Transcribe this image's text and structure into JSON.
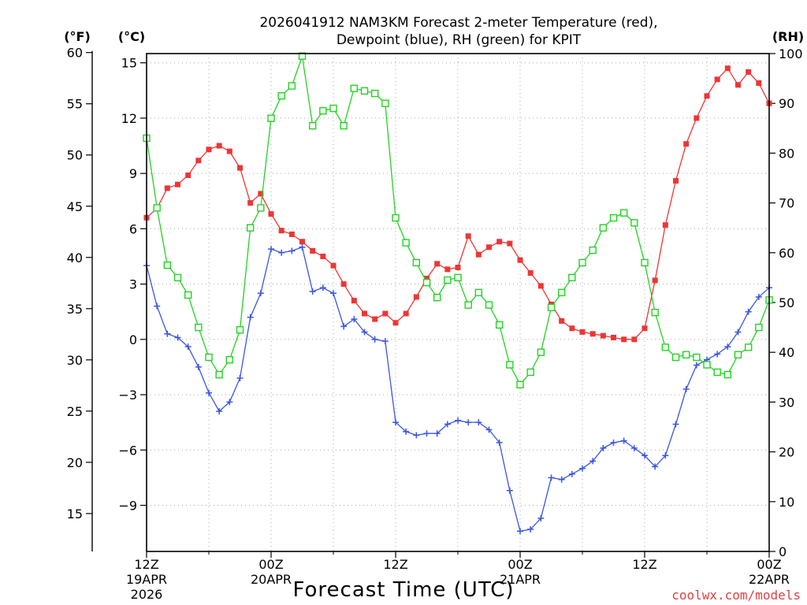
{
  "chart_data": {
    "type": "line",
    "title_line1": "2026041912 NAM3KM Forecast 2-meter Temperature (red),",
    "title_line2": "Dewpoint (blue), RH (green) for KPIT",
    "xlabel": "Forecast Time (UTC)",
    "credit": "coolwx.com/models",
    "units": {
      "fahrenheit": "(°F)",
      "celsius": "(°C)",
      "rh": "(RH)"
    },
    "x_hours": [
      0,
      1,
      2,
      3,
      4,
      5,
      6,
      7,
      8,
      9,
      10,
      11,
      12,
      13,
      14,
      15,
      16,
      17,
      18,
      19,
      20,
      21,
      22,
      23,
      24,
      25,
      26,
      27,
      28,
      29,
      30,
      31,
      32,
      33,
      34,
      35,
      36,
      37,
      38,
      39,
      40,
      41,
      42,
      43,
      44,
      45,
      46,
      47,
      48,
      49,
      50,
      51,
      52,
      53,
      54,
      55,
      56,
      57,
      58,
      59,
      60
    ],
    "xlim_hours": [
      0,
      60
    ],
    "x_ticks": [
      {
        "hour": 0,
        "lines": [
          "12Z",
          "19APR",
          "2026"
        ]
      },
      {
        "hour": 12,
        "lines": [
          "00Z",
          "20APR"
        ]
      },
      {
        "hour": 24,
        "lines": [
          "12Z"
        ]
      },
      {
        "hour": 36,
        "lines": [
          "00Z",
          "21APR"
        ]
      },
      {
        "hour": 48,
        "lines": [
          "12Z"
        ]
      },
      {
        "hour": 60,
        "lines": [
          "00Z",
          "22APR"
        ]
      }
    ],
    "celsius_axis": {
      "min": -11.5,
      "max": 15.5,
      "ticks": [
        "15",
        "12",
        "9",
        "6",
        "3",
        "0",
        "−3",
        "−6",
        "−9"
      ],
      "tick_values": [
        15,
        12,
        9,
        6,
        3,
        0,
        -3,
        -6,
        -9
      ]
    },
    "fahrenheit_axis": {
      "ticks": [
        "60",
        "55",
        "50",
        "45",
        "40",
        "35",
        "30",
        "25",
        "20",
        "15"
      ],
      "tick_values": [
        60,
        55,
        50,
        45,
        40,
        35,
        30,
        25,
        20,
        15
      ]
    },
    "rh_axis": {
      "min": 0,
      "max": 100,
      "ticks": [
        "100",
        "90",
        "80",
        "70",
        "60",
        "50",
        "40",
        "30",
        "20",
        "10",
        "0"
      ],
      "tick_values": [
        100,
        90,
        80,
        70,
        60,
        50,
        40,
        30,
        20,
        10,
        0
      ]
    },
    "series": [
      {
        "name": "Temperature",
        "unit": "C",
        "color": "#ef3535",
        "marker": "filled-square",
        "values": [
          6.6,
          7.1,
          8.2,
          8.4,
          8.9,
          9.7,
          10.3,
          10.5,
          10.2,
          9.3,
          7.4,
          7.9,
          6.8,
          5.9,
          5.7,
          5.3,
          4.8,
          4.5,
          4.0,
          3.0,
          2.1,
          1.4,
          1.1,
          1.4,
          0.9,
          1.4,
          2.3,
          3.3,
          4.1,
          3.8,
          3.9,
          5.6,
          4.6,
          5.0,
          5.3,
          5.2,
          4.3,
          3.6,
          2.9,
          1.9,
          1.0,
          0.6,
          0.4,
          0.3,
          0.2,
          0.1,
          0.0,
          0.0,
          0.6,
          3.2,
          6.2,
          8.6,
          10.6,
          12.0,
          13.2,
          14.1,
          14.7,
          13.8,
          14.5,
          13.9,
          12.8
        ]
      },
      {
        "name": "Dewpoint",
        "unit": "C",
        "color": "#3b56e0",
        "marker": "plus",
        "values": [
          4.0,
          1.8,
          0.3,
          0.1,
          -0.4,
          -1.5,
          -2.9,
          -3.9,
          -3.4,
          -2.1,
          1.2,
          2.5,
          4.9,
          4.7,
          4.8,
          5.0,
          2.6,
          2.8,
          2.5,
          0.7,
          1.1,
          0.4,
          0.0,
          -0.1,
          -4.5,
          -5.0,
          -5.2,
          -5.1,
          -5.1,
          -4.6,
          -4.4,
          -4.5,
          -4.5,
          -4.9,
          -5.6,
          -8.2,
          -10.4,
          -10.3,
          -9.7,
          -7.5,
          -7.6,
          -7.3,
          -7.0,
          -6.6,
          -5.9,
          -5.6,
          -5.5,
          -5.9,
          -6.3,
          -6.9,
          -6.3,
          -4.6,
          -2.7,
          -1.4,
          -1.1,
          -0.8,
          -0.4,
          0.4,
          1.5,
          2.3,
          2.8
        ]
      },
      {
        "name": "RH",
        "unit": "%",
        "color": "#22d322",
        "marker": "open-square",
        "values": [
          83.0,
          69.0,
          57.5,
          55.0,
          51.5,
          45.0,
          39.0,
          35.5,
          38.5,
          44.5,
          65.0,
          69.0,
          87.0,
          91.5,
          93.5,
          99.5,
          85.5,
          88.5,
          89.0,
          85.5,
          93.0,
          92.5,
          92.0,
          90.0,
          67.0,
          62.0,
          58.0,
          54.0,
          51.0,
          54.5,
          55.0,
          49.5,
          52.0,
          49.5,
          45.5,
          37.5,
          33.5,
          36.0,
          40.0,
          49.0,
          52.0,
          55.0,
          58.0,
          60.5,
          65.0,
          67.0,
          68.0,
          66.0,
          58.0,
          48.0,
          41.0,
          39.0,
          39.5,
          39.0,
          37.5,
          36.0,
          35.5,
          39.5,
          41.0,
          45.0,
          50.5
        ]
      }
    ]
  }
}
